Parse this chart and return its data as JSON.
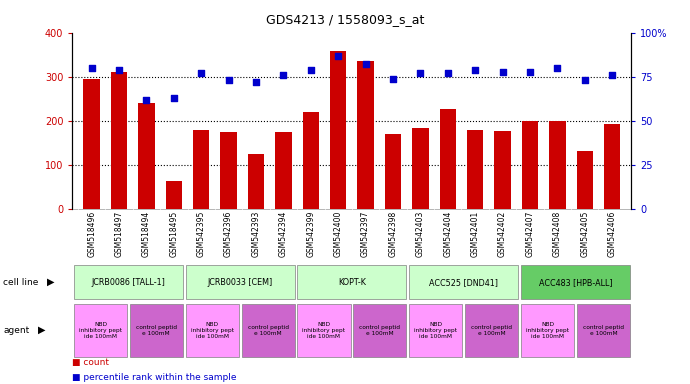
{
  "title": "GDS4213 / 1558093_s_at",
  "samples": [
    "GSM518496",
    "GSM518497",
    "GSM518494",
    "GSM518495",
    "GSM542395",
    "GSM542396",
    "GSM542393",
    "GSM542394",
    "GSM542399",
    "GSM542400",
    "GSM542397",
    "GSM542398",
    "GSM542403",
    "GSM542404",
    "GSM542401",
    "GSM542402",
    "GSM542407",
    "GSM542408",
    "GSM542405",
    "GSM542406"
  ],
  "counts": [
    295,
    310,
    240,
    65,
    180,
    175,
    125,
    175,
    220,
    358,
    335,
    170,
    185,
    228,
    180,
    178,
    200,
    200,
    132,
    192
  ],
  "percentiles": [
    80,
    79,
    62,
    63,
    77,
    73,
    72,
    76,
    79,
    87,
    82,
    74,
    77,
    77,
    79,
    78,
    78,
    80,
    73,
    76
  ],
  "bar_color": "#CC0000",
  "dot_color": "#0000CC",
  "ylim_left": [
    0,
    400
  ],
  "ylim_right": [
    0,
    100
  ],
  "yticks_left": [
    0,
    100,
    200,
    300,
    400
  ],
  "yticks_right": [
    0,
    25,
    50,
    75,
    100
  ],
  "cell_line_groups": [
    {
      "label": "JCRB0086 [TALL-1]",
      "start": 0,
      "end": 3,
      "color": "#CCFFCC"
    },
    {
      "label": "JCRB0033 [CEM]",
      "start": 4,
      "end": 7,
      "color": "#CCFFCC"
    },
    {
      "label": "KOPT-K",
      "start": 8,
      "end": 11,
      "color": "#CCFFCC"
    },
    {
      "label": "ACC525 [DND41]",
      "start": 12,
      "end": 15,
      "color": "#CCFFCC"
    },
    {
      "label": "ACC483 [HPB-ALL]",
      "start": 16,
      "end": 19,
      "color": "#66CC66"
    }
  ],
  "agent_groups": [
    {
      "label": "NBD\ninhibitory pept\nide 100mM",
      "start": 0,
      "end": 1,
      "color": "#FF99FF"
    },
    {
      "label": "control peptid\ne 100mM",
      "start": 2,
      "end": 3,
      "color": "#CC66CC"
    },
    {
      "label": "NBD\ninhibitory pept\nide 100mM",
      "start": 4,
      "end": 5,
      "color": "#FF99FF"
    },
    {
      "label": "control peptid\ne 100mM",
      "start": 6,
      "end": 7,
      "color": "#CC66CC"
    },
    {
      "label": "NBD\ninhibitory pept\nide 100mM",
      "start": 8,
      "end": 9,
      "color": "#FF99FF"
    },
    {
      "label": "control peptid\ne 100mM",
      "start": 10,
      "end": 11,
      "color": "#CC66CC"
    },
    {
      "label": "NBD\ninhibitory pept\nide 100mM",
      "start": 12,
      "end": 13,
      "color": "#FF99FF"
    },
    {
      "label": "control peptid\ne 100mM",
      "start": 14,
      "end": 15,
      "color": "#CC66CC"
    },
    {
      "label": "NBD\ninhibitory pept\nide 100mM",
      "start": 16,
      "end": 17,
      "color": "#FF99FF"
    },
    {
      "label": "control peptid\ne 100mM",
      "start": 18,
      "end": 19,
      "color": "#CC66CC"
    }
  ],
  "legend_count_color": "#CC0000",
  "legend_pct_color": "#0000CC"
}
